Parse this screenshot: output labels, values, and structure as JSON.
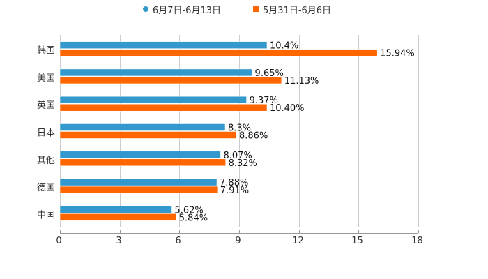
{
  "chart_data": {
    "type": "bar",
    "orientation": "horizontal",
    "title": "",
    "xlabel": "",
    "ylabel": "",
    "categories": [
      "韩国",
      "美国",
      "英国",
      "日本",
      "其他",
      "德国",
      "中国"
    ],
    "series": [
      {
        "name": "6月7日-6月13日",
        "color": "#3399cc",
        "values": [
          10.4,
          9.65,
          9.37,
          8.3,
          8.07,
          7.88,
          5.62
        ],
        "labels": [
          "10.4%",
          "9.65%",
          "9.37%",
          "8.3%",
          "8.07%",
          "7.88%",
          "5.62%"
        ]
      },
      {
        "name": "5月31日-6月6日",
        "color": "#ff6600",
        "values": [
          15.94,
          11.13,
          10.4,
          8.86,
          8.32,
          7.91,
          5.84
        ],
        "labels": [
          "15.94%",
          "11.13%",
          "10.40%",
          "8.86%",
          "8.32%",
          "7.91%",
          "5.84%"
        ]
      }
    ],
    "xlim": [
      0,
      18
    ],
    "xticks": [
      "0",
      "3",
      "6",
      "9",
      "12",
      "15",
      "18"
    ],
    "grid": true,
    "legend_position": "top"
  },
  "legend": {
    "series_a": "6月7日-6月13日",
    "series_b": "5月31日-6月6日"
  }
}
